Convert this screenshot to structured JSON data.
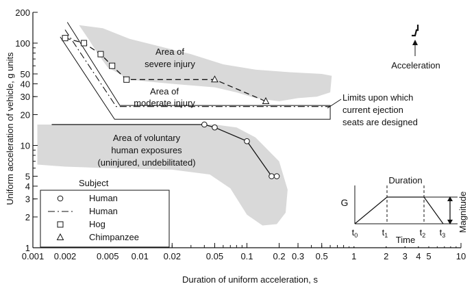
{
  "chart_data": {
    "type": "line",
    "xscale": "log",
    "yscale": "log",
    "xlabel": "Duration of uniform acceleration, s",
    "ylabel": "Uniform acceleration of vehicle, g units",
    "xlim": [
      0.001,
      10
    ],
    "ylim": [
      1,
      200
    ],
    "x_ticks": [
      {
        "value": 0.001,
        "label": "0.001"
      },
      {
        "value": 0.002,
        "label": "0.002"
      },
      {
        "value": 0.005,
        "label": "0.005"
      },
      {
        "value": 0.01,
        "label": "0.01"
      },
      {
        "value": 0.02,
        "label": "0.02"
      },
      {
        "value": 0.05,
        "label": "0.05"
      },
      {
        "value": 0.1,
        "label": "0.1"
      },
      {
        "value": 0.2,
        "label": "0.2"
      },
      {
        "value": 0.3,
        "label": "0.3"
      },
      {
        "value": 0.5,
        "label": "0.5"
      },
      {
        "value": 1,
        "label": "1"
      },
      {
        "value": 2,
        "label": "2"
      },
      {
        "value": 3,
        "label": "3"
      },
      {
        "value": 4,
        "label": "4"
      },
      {
        "value": 5,
        "label": "5"
      },
      {
        "value": 10,
        "label": "10"
      }
    ],
    "y_ticks": [
      {
        "value": 1,
        "label": "1"
      },
      {
        "value": 2,
        "label": "2"
      },
      {
        "value": 3,
        "label": "3"
      },
      {
        "value": 4,
        "label": "4"
      },
      {
        "value": 5,
        "label": "5"
      },
      {
        "value": 10,
        "label": "10"
      },
      {
        "value": 20,
        "label": "20"
      },
      {
        "value": 30,
        "label": "30"
      },
      {
        "value": 40,
        "label": "40"
      },
      {
        "value": 50,
        "label": "50"
      },
      {
        "value": 100,
        "label": "100"
      },
      {
        "value": 200,
        "label": "200"
      }
    ],
    "grid": false,
    "regions": [
      {
        "id": "severe",
        "label": "Area of\nsevere injury",
        "color": "#d9d9d9"
      },
      {
        "id": "voluntary",
        "label": "Area of voluntary\nhuman exposures\n(uninjured, undebilitated)",
        "color": "#d9d9d9"
      }
    ],
    "region_text": {
      "moderate": "Area of\nmoderate injury",
      "limits": "Limits upon which\ncurrent ejection\nseats are designed"
    },
    "series": [
      {
        "name": "Human",
        "marker": "circle",
        "style": "solid",
        "x": [
          0.0015,
          0.04,
          0.05,
          0.1,
          0.17,
          0.19
        ],
        "y": [
          16,
          16,
          15,
          11,
          5,
          5
        ]
      },
      {
        "name": "Human",
        "marker": "none",
        "style": "dashdot",
        "x": [
          0.002,
          0.006,
          0.6
        ],
        "y": [
          135,
          24,
          24
        ]
      },
      {
        "name": "Hog",
        "marker": "square",
        "style": "dashed",
        "x": [
          0.002,
          0.003,
          0.0043,
          0.0055,
          0.0075,
          0.05,
          0.15
        ],
        "y": [
          112,
          100,
          78,
          60,
          44,
          44,
          27
        ]
      },
      {
        "name": "Chimpanzee",
        "marker": "triangle",
        "style": "dashed",
        "x": [
          0.05,
          0.15
        ],
        "y": [
          44,
          27
        ]
      }
    ],
    "legend": {
      "title": "Subject",
      "position": "bottom-left"
    },
    "annotations": {
      "acceleration": "Acceleration",
      "inset": {
        "title": "Duration",
        "g_label": "G",
        "time_label": "Time",
        "magnitude_label": "Magnitude",
        "t_labels": [
          "t0",
          "t1",
          "t2",
          "t3"
        ]
      }
    }
  }
}
